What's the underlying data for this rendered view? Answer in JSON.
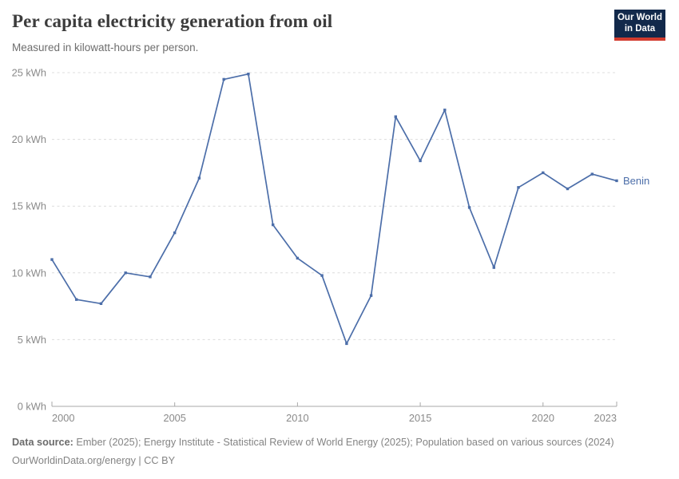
{
  "header": {
    "title": "Per capita electricity generation from oil",
    "subtitle": "Measured in kilowatt-hours per person.",
    "logo": {
      "line1": "Our World",
      "line2": "in Data",
      "bg_color": "#12294B",
      "accent_color": "#D23B2E"
    }
  },
  "chart_data": {
    "type": "line",
    "title": "Per capita electricity generation from oil",
    "xlabel": "",
    "ylabel": "kWh",
    "x": [
      2000,
      2001,
      2002,
      2003,
      2004,
      2005,
      2006,
      2007,
      2008,
      2009,
      2010,
      2011,
      2012,
      2013,
      2014,
      2015,
      2016,
      2017,
      2018,
      2019,
      2020,
      2021,
      2022,
      2023
    ],
    "series": [
      {
        "name": "Benin",
        "color": "#4C6EA9",
        "values": [
          11.0,
          8.0,
          7.7,
          10.0,
          9.7,
          13.0,
          17.1,
          24.5,
          24.9,
          13.6,
          11.1,
          9.8,
          4.7,
          8.3,
          21.7,
          18.4,
          22.2,
          14.9,
          10.4,
          16.4,
          17.5,
          16.3,
          17.4,
          16.9
        ]
      }
    ],
    "xlim": [
      2000,
      2023
    ],
    "ylim": [
      0,
      25
    ],
    "yticks": [
      {
        "value": 0,
        "label": "0 kWh"
      },
      {
        "value": 5,
        "label": "5 kWh"
      },
      {
        "value": 10,
        "label": "10 kWh"
      },
      {
        "value": 15,
        "label": "15 kWh"
      },
      {
        "value": 20,
        "label": "20 kWh"
      },
      {
        "value": 25,
        "label": "25 kWh"
      }
    ],
    "xticks": [
      {
        "value": 2000,
        "label": "2000"
      },
      {
        "value": 2005,
        "label": "2005"
      },
      {
        "value": 2010,
        "label": "2010"
      },
      {
        "value": 2015,
        "label": "2015"
      },
      {
        "value": 2020,
        "label": "2020"
      },
      {
        "value": 2023,
        "label": "2023"
      }
    ],
    "grid": "horizontal dashed",
    "legend_position": "end-of-line",
    "colors": {
      "gridline": "#dcdcdc",
      "axis": "#a8a8a8",
      "tick_text": "#8a8a8a"
    }
  },
  "footer": {
    "source_label": "Data source:",
    "source_text": " Ember (2025); Energy Institute - Statistical Review of World Energy (2025); Population based on various sources (2024)",
    "attribution": "OurWorldinData.org/energy | CC BY"
  }
}
